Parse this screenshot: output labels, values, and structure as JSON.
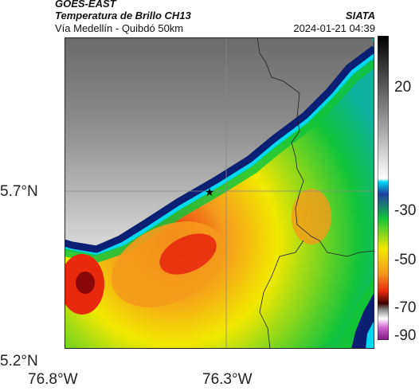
{
  "header": {
    "satellite": "GOES-EAST",
    "product": "Temperatura de Brillo CH13",
    "route": "Vía Medellín - Quibdó 50km",
    "org": "SIATA",
    "datetime": "2024-01-21 04:39"
  },
  "axes": {
    "lat_ticks": [
      {
        "label": "5.7°N",
        "value": 5.7
      },
      {
        "label": "5.2°N",
        "value": 5.2
      }
    ],
    "lon_ticks": [
      {
        "label": "76.8°W",
        "value": -76.8
      },
      {
        "label": "76.3°W",
        "value": -76.3
      }
    ]
  },
  "colorbar": {
    "ticks": [
      {
        "label": "20",
        "value": 20
      },
      {
        "label": "-30",
        "value": -30
      },
      {
        "label": "-50",
        "value": -50
      },
      {
        "label": "-70",
        "value": -70
      },
      {
        "label": "-90",
        "value": -90
      }
    ],
    "range": [
      -93,
      38
    ]
  },
  "marker": {
    "symbol": "★",
    "lat": 5.7,
    "lon": -76.39
  },
  "colors": {
    "cloud_free": "#6e6e6e",
    "edge_dark": "#0b1f73",
    "edge_cyan": "#00d8f0",
    "green": "#13c43a",
    "yellow": "#f2e800",
    "orange": "#f59a1c",
    "red": "#e8290e",
    "dark_red": "#8a0707"
  }
}
